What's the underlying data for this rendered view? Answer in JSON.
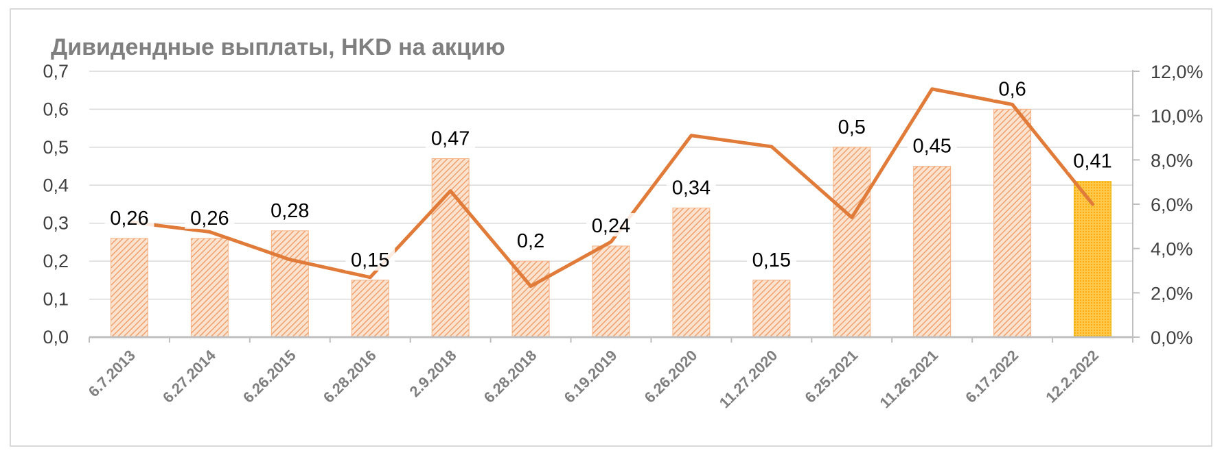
{
  "chart_data": {
    "type": "bar",
    "title": "Дивидендные выплаты, HKD на акцию",
    "categories": [
      "6.7.2013",
      "6.27.2014",
      "6.26.2015",
      "6.28.2016",
      "2.9.2018",
      "6.28.2018",
      "6.19.2019",
      "6.26.2020",
      "11.27.2020",
      "6.25.2021",
      "11.26.2021",
      "6.17.2022",
      "12.2.2022"
    ],
    "series": [
      {
        "type": "bar",
        "axis": "left",
        "values": [
          0.26,
          0.26,
          0.28,
          0.15,
          0.47,
          0.2,
          0.24,
          0.34,
          0.15,
          0.5,
          0.45,
          0.6,
          0.41
        ],
        "data_labels": [
          "0,26",
          "0,26",
          "0,28",
          "0,15",
          "0,47",
          "0,2",
          "0,24",
          "0,34",
          "0,15",
          "0,5",
          "0,45",
          "0,6",
          "0,41"
        ],
        "color": "#f4b183",
        "highlight_index": 12,
        "highlight_color": "#ffc000"
      },
      {
        "type": "line",
        "axis": "right",
        "values": [
          5.2,
          4.75,
          3.5,
          2.7,
          6.6,
          2.3,
          4.3,
          9.1,
          8.6,
          5.4,
          11.2,
          10.5,
          6.0
        ],
        "color": "#e07b39"
      }
    ],
    "y_left": {
      "min": 0,
      "max": 0.7,
      "ticks": [
        "0,0",
        "0,1",
        "0,2",
        "0,3",
        "0,4",
        "0,5",
        "0,6",
        "0,7"
      ]
    },
    "y_right": {
      "min": 0,
      "max": 12,
      "ticks": [
        "0,0%",
        "2,0%",
        "4,0%",
        "6,0%",
        "8,0%",
        "10,0%",
        "12,0%"
      ]
    },
    "grid": true,
    "legend": "none"
  }
}
